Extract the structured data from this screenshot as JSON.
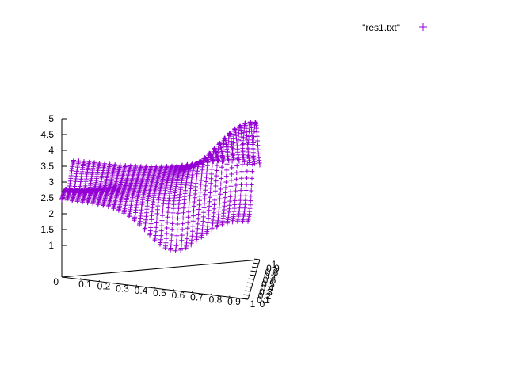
{
  "chart_data": {
    "type": "surface3d-points",
    "title": "",
    "legend": {
      "label": "\"res1.txt\"",
      "marker": "+",
      "placement": "top-right"
    },
    "series": [
      {
        "name": "\"res1.txt\"",
        "color": "#9400d3",
        "marker": "+",
        "description_points": [
          {
            "x": 0.0,
            "y": 0.0,
            "z": 2.45
          },
          {
            "x": 0.6,
            "y": 0.0,
            "z": 1.25
          },
          {
            "x": 1.0,
            "y": 0.0,
            "z": 2.45
          },
          {
            "x": 1.0,
            "y": 0.6,
            "z": 4.8
          },
          {
            "x": 0.0,
            "y": 0.6,
            "z": 2.0
          },
          {
            "x": 1.0,
            "y": 1.0,
            "z": 2.5
          },
          {
            "x": 0.0,
            "y": 1.0,
            "z": 2.45
          }
        ]
      }
    ],
    "x_ticks": [
      "0",
      "0.1",
      "0.2",
      "0.3",
      "0.4",
      "0.5",
      "0.6",
      "0.7",
      "0.8",
      "0.9",
      "1"
    ],
    "y_ticks": [
      "0",
      "0.1",
      "0.2",
      "0.3",
      "0.4",
      "0.5",
      "0.6",
      "0.7",
      "0.8",
      "0.9",
      "1"
    ],
    "z_ticks": [
      "1",
      "1.5",
      "2",
      "2.5",
      "3",
      "3.5",
      "4",
      "4.5",
      "5"
    ],
    "xlim": [
      0,
      1
    ],
    "ylim": [
      0,
      1
    ],
    "zlim": [
      0,
      5
    ],
    "grid": false
  }
}
